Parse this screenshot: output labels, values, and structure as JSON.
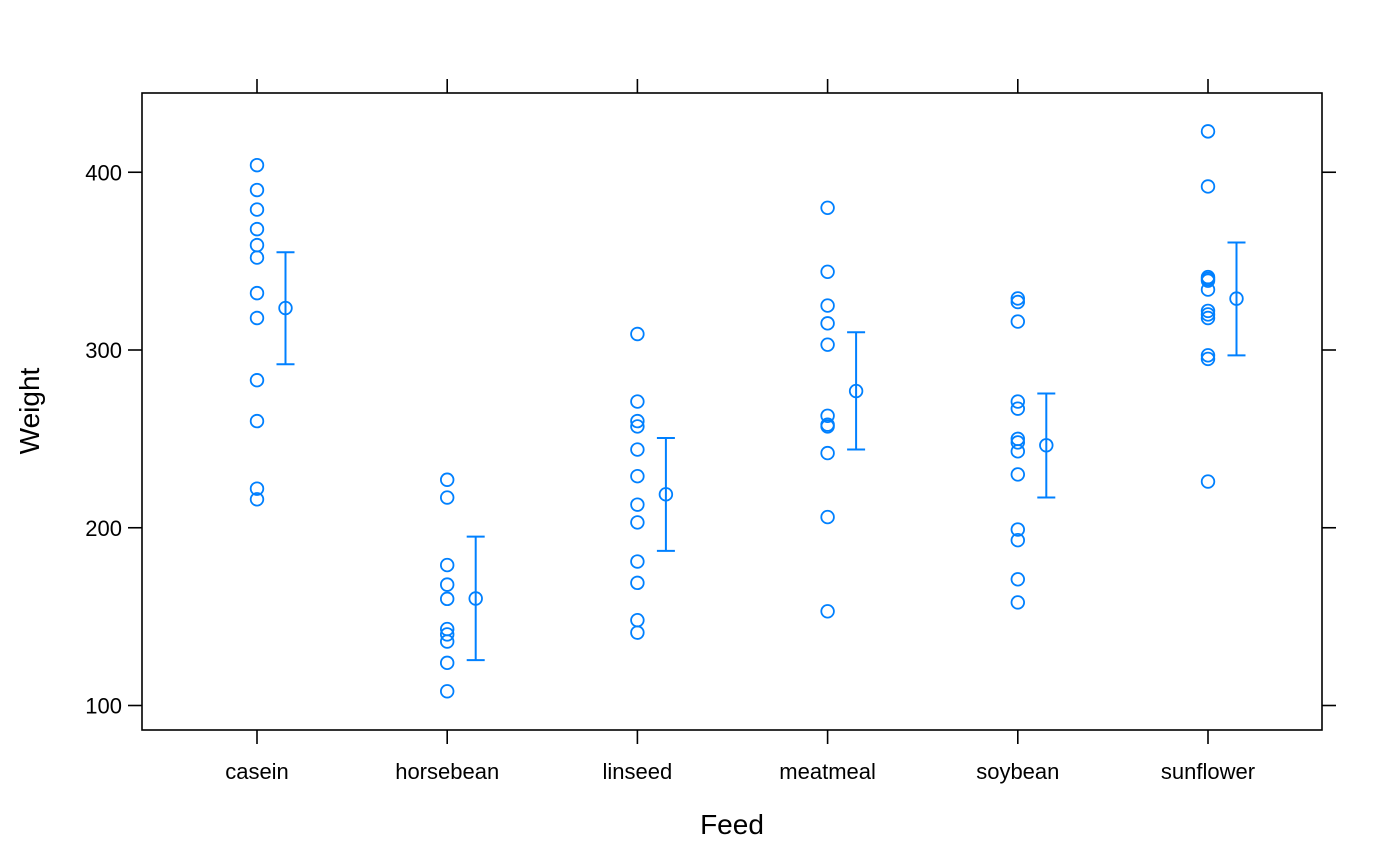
{
  "chart_data": {
    "type": "scatter",
    "xlabel": "Feed",
    "ylabel": "Weight",
    "categories": [
      "casein",
      "horsebean",
      "linseed",
      "meatmeal",
      "soybean",
      "sunflower"
    ],
    "yticks": [
      100,
      200,
      300,
      400
    ],
    "ylim": [
      85,
      445
    ],
    "color": "#0080ff",
    "grid": false,
    "observations": [
      [
        404,
        390,
        379,
        368,
        359,
        352,
        332,
        318,
        283,
        260,
        222,
        216
      ],
      [
        227,
        217,
        179,
        168,
        160,
        143,
        140,
        136,
        124,
        108
      ],
      [
        309,
        271,
        260,
        257,
        244,
        229,
        213,
        203,
        181,
        169,
        148,
        141
      ],
      [
        380,
        344,
        325,
        315,
        303,
        263,
        258,
        257,
        242,
        206,
        153
      ],
      [
        329,
        327,
        316,
        271,
        267,
        250,
        248,
        243,
        230,
        199,
        193,
        171,
        158
      ],
      [
        423,
        392,
        341,
        340,
        339,
        334,
        322,
        320,
        318,
        297,
        295,
        226
      ]
    ],
    "means": [
      323.6,
      160.2,
      218.8,
      276.9,
      246.4,
      328.9
    ],
    "intervals": [
      [
        292,
        355
      ],
      [
        125.5,
        195
      ],
      [
        187,
        250.5
      ],
      [
        244,
        310
      ],
      [
        217,
        275.5
      ],
      [
        297,
        360.5
      ]
    ]
  }
}
